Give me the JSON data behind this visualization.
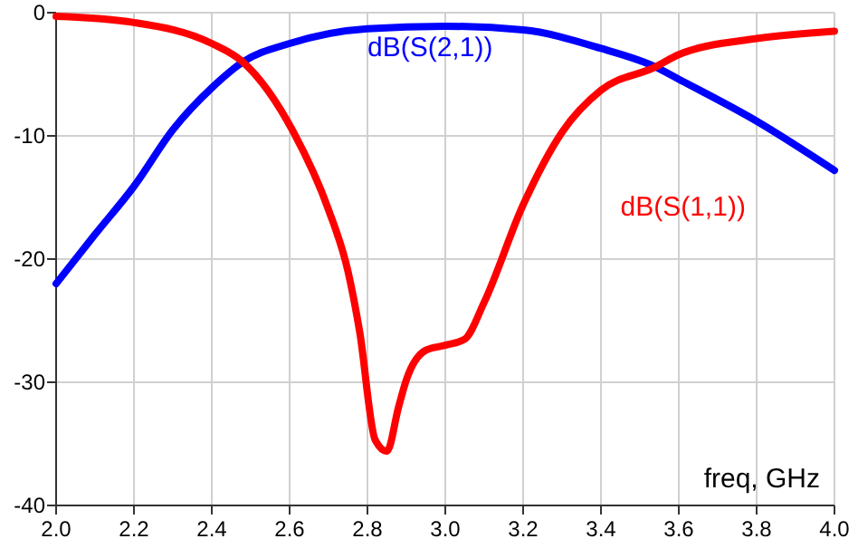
{
  "chart_data": {
    "type": "line",
    "xlabel": "freq, GHz",
    "xlim": [
      2,
      4
    ],
    "ylim": [
      -40,
      0
    ],
    "xticks": [
      {
        "value": 2,
        "label": "2.0"
      },
      {
        "value": 2.2,
        "label": "2.2"
      },
      {
        "value": 2.4,
        "label": "2.4"
      },
      {
        "value": 2.6,
        "label": "2.6"
      },
      {
        "value": 2.8,
        "label": "2.8"
      },
      {
        "value": 3,
        "label": "3.0"
      },
      {
        "value": 3.2,
        "label": "3.2"
      },
      {
        "value": 3.4,
        "label": "3.4"
      },
      {
        "value": 3.6,
        "label": "3.6"
      },
      {
        "value": 3.8,
        "label": "3.8"
      },
      {
        "value": 4,
        "label": "4.0"
      }
    ],
    "yticks": [
      0,
      -10,
      -20,
      -30,
      -40
    ],
    "grid": true,
    "line_style": "solid",
    "marker": "none",
    "series": [
      {
        "name": "dB(S(2,1))",
        "color": "#0000ff",
        "x": [
          2,
          2.1,
          2.2,
          2.3,
          2.4,
          2.48,
          2.6,
          2.8,
          3,
          3.2,
          3.4,
          3.54,
          3.6,
          3.8,
          4
        ],
        "values": [
          -22,
          -18,
          -14.1,
          -9.5,
          -6.1,
          -4,
          -2.5,
          -1.3,
          -1.1,
          -1.4,
          -2.9,
          -4.4,
          -5.4,
          -8.8,
          -12.8
        ]
      },
      {
        "name": "dB(S(1,1))",
        "color": "#ff0000",
        "x": [
          2,
          2.2,
          2.4,
          2.48,
          2.61,
          2.7,
          2.75,
          2.78,
          2.82,
          2.85,
          2.88,
          2.9,
          2.95,
          3,
          3.05,
          3.1,
          3.2,
          3.3,
          3.4,
          3.54,
          3.6,
          3.8,
          4
        ],
        "values": [
          -0.3,
          -0.8,
          -2.5,
          -4,
          -9.7,
          -16,
          -21,
          -25.9,
          -34.7,
          -35.6,
          -32,
          -29.8,
          -27.4,
          -27,
          -26.5,
          -23.5,
          -15.6,
          -9.7,
          -6.3,
          -4.4,
          -3.4,
          -2.1,
          -1.5
        ]
      }
    ]
  }
}
